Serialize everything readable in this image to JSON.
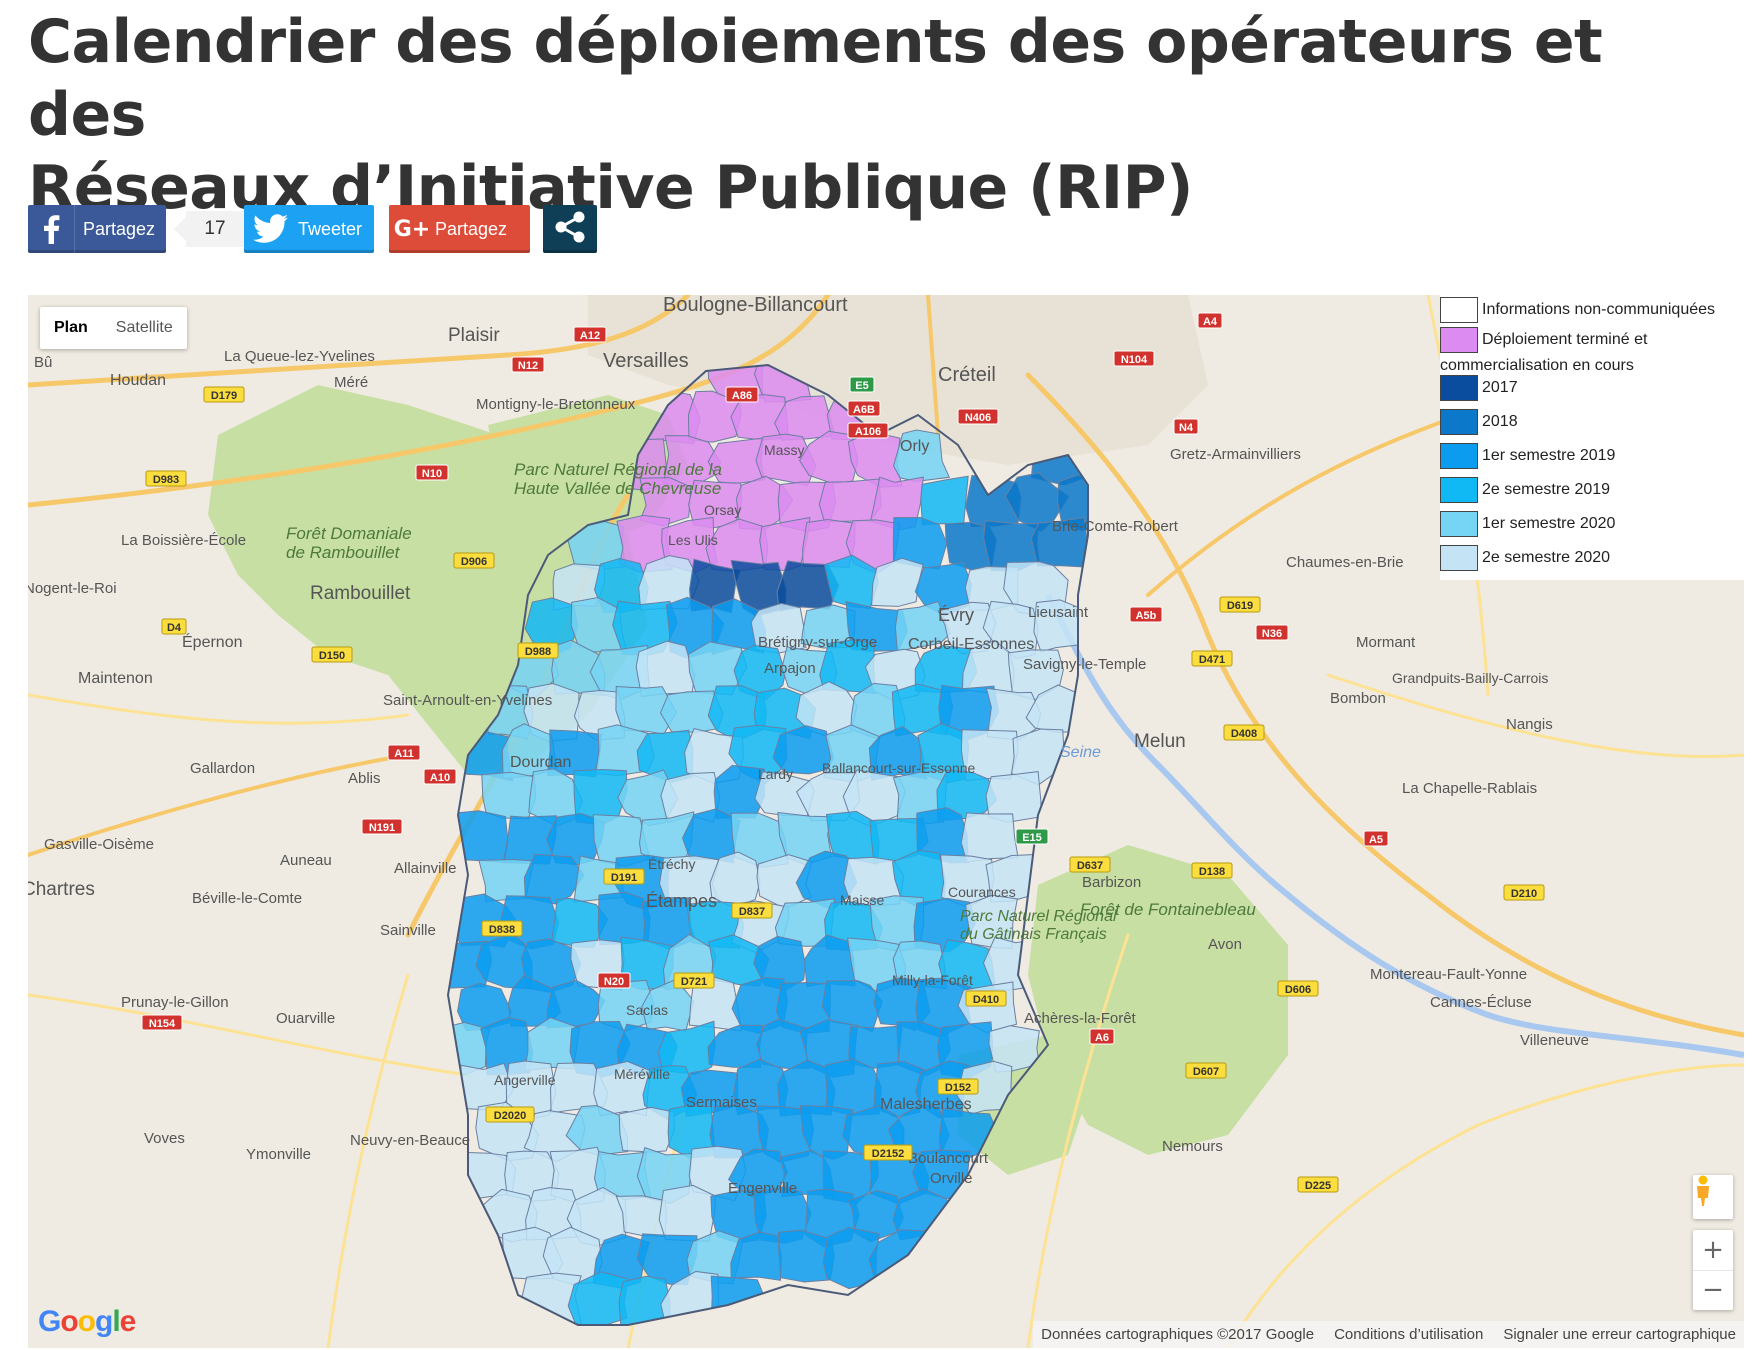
{
  "title": "Calendrier des déploiements des opérateurs et des Réseaux d’Initiative Publique (RIP)",
  "title_lines": [
    "Calendrier des déploiements des opérateurs et des",
    "Réseaux d’Initiative Publique (RIP)"
  ],
  "share": {
    "facebook_label": "Partagez",
    "facebook_count": "17",
    "twitter_label": "Tweeter",
    "googleplus_label": "Partagez",
    "googleplus_icon_text": "G+",
    "colors": {
      "facebook": "#3b5998",
      "twitter": "#1da1f2",
      "googleplus": "#dd4b39",
      "share": "#0e3f56"
    }
  },
  "map": {
    "type_buttons": [
      "Plan",
      "Satellite"
    ],
    "selected_type": "Plan",
    "legend": [
      {
        "label": "Informations non-communiquées",
        "color": "#ffffff"
      },
      {
        "label": "Déploiement terminé et commercialisation en cours",
        "color": "#dc8cf0"
      },
      {
        "label": "2017",
        "color": "#0a4c9e"
      },
      {
        "label": "2018",
        "color": "#0b78c9"
      },
      {
        "label": "1er semestre 2019",
        "color": "#0b9cf0"
      },
      {
        "label": "2e semestre 2019",
        "color": "#10b8f4"
      },
      {
        "label": "1er semestre 2020",
        "color": "#76d4f4"
      },
      {
        "label": "2e semestre 2020",
        "color": "#c4e4f6"
      }
    ],
    "places": [
      "Boulogne-Billancourt",
      "Plaisir",
      "Versailles",
      "Créteil",
      "La Queue-lez-Yvelines",
      "Bû",
      "Houdan",
      "Méré",
      "Montigny-le-Bretonneux",
      "Orly",
      "Gretz-Armainvilliers",
      "Parc Naturel Régional de la Haute Vallée de Chevreuse",
      "Forêt Domaniale de Rambouillet",
      "La Boissière-École",
      "Rambouillet",
      "Nogent-le-Roi",
      "Épernon",
      "Maintenon",
      "Saint-Arnoult-en-Yvelines",
      "Gallardon",
      "Ablis",
      "Gasville-Oisème",
      "Auneau",
      "Allainville",
      "Béville-le-Comte",
      "Sainville",
      "Prunay-le-Gillon",
      "Ouarville",
      "Voves",
      "Ymonville",
      "Neuvy-en-Beauce",
      "Brie-Comte-Robert",
      "Chaumes-en-Brie",
      "Lieusaint",
      "Évry",
      "Corbeil-Essonnes",
      "Savigny-le-Temple",
      "Mormant",
      "Grandpuits-Bailly-Carrois",
      "Bombon",
      "Nangis",
      "Melun",
      "Seine",
      "La Chapelle-Rablais",
      "Barbizon",
      "Forêt de Fontainebleau",
      "Avon",
      "Montereau-Fault-Yonne",
      "Cannes-Écluse",
      "Villeneuve",
      "Achères-la-Forêt",
      "Nemours",
      "Malesherbes",
      "Sermaises",
      "Engenville",
      "Boulancourt",
      "Orville",
      "Dourdan",
      "Étampes",
      "Arpajon",
      "Brétigny-sur-Orge",
      "Ballancourt-sur-Essonne",
      "Courances",
      "Parc Naturel Régional du Gâtinais Français",
      "Méréville",
      "Angerville",
      "Saclas",
      "Orsay",
      "Massy",
      "Les Ulis",
      "Lardy",
      "Étréchy",
      "Chartres",
      "Maisse",
      "Milly-la-Forêt"
    ],
    "roads": [
      "A12",
      "N12",
      "D179",
      "N10",
      "D983",
      "A86",
      "E5",
      "A6B",
      "A106",
      "N406",
      "N104",
      "N4",
      "A4",
      "D906",
      "D4",
      "D150",
      "D988",
      "A11",
      "A10",
      "N191",
      "D838",
      "N20",
      "D191",
      "D721",
      "D837",
      "A6",
      "D410",
      "D152",
      "D2152",
      "D2020",
      "N154",
      "A5b",
      "D619",
      "N36",
      "D471",
      "D408",
      "A5",
      "D637",
      "D138",
      "D210",
      "D606",
      "D607",
      "D225",
      "E15"
    ],
    "attribution": [
      "Données cartographiques ©2017 Google",
      "Conditions d’utilisation",
      "Signaler une erreur cartographique"
    ],
    "logo": "Google",
    "zoom_in": "+",
    "zoom_out": "−"
  }
}
